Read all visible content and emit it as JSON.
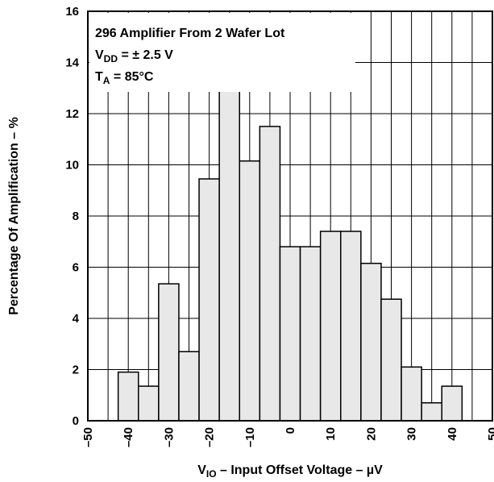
{
  "chart_data": {
    "type": "bar",
    "xlabel": {
      "main": "V",
      "sub": "IO",
      "rest": " – Input Offset Voltage – µV"
    },
    "ylabel": "Percentage Of Amplification – %",
    "xlim": [
      -50,
      50
    ],
    "ylim": [
      0,
      16
    ],
    "x_ticks": [
      "–50",
      "–40",
      "–30",
      "–20",
      "–10",
      "0",
      "10",
      "20",
      "30",
      "40",
      "50"
    ],
    "y_ticks": [
      "0",
      "2",
      "4",
      "6",
      "8",
      "10",
      "12",
      "14",
      "16"
    ],
    "grid": true,
    "bin_width": 5,
    "bins": [
      {
        "x0": -42.5,
        "value": 1.9
      },
      {
        "x0": -37.5,
        "value": 1.35
      },
      {
        "x0": -32.5,
        "value": 5.35
      },
      {
        "x0": -27.5,
        "value": 2.7
      },
      {
        "x0": -22.5,
        "value": 9.45
      },
      {
        "x0": -17.5,
        "value": 14.15
      },
      {
        "x0": -12.5,
        "value": 10.15
      },
      {
        "x0": -7.5,
        "value": 11.5
      },
      {
        "x0": -2.5,
        "value": 6.8
      },
      {
        "x0": 2.5,
        "value": 6.8
      },
      {
        "x0": 7.5,
        "value": 7.4
      },
      {
        "x0": 12.5,
        "value": 7.4
      },
      {
        "x0": 17.5,
        "value": 6.15
      },
      {
        "x0": 22.5,
        "value": 4.75
      },
      {
        "x0": 27.5,
        "value": 2.1
      },
      {
        "x0": 32.5,
        "value": 0.7
      },
      {
        "x0": 37.5,
        "value": 1.35
      }
    ],
    "annotations": {
      "line1": "296 Amplifier From 2 Wafer Lot",
      "line2": {
        "main": "V",
        "sub": "DD",
        "rest": " = ± 2.5 V"
      },
      "line3": {
        "main": "T",
        "sub": "A",
        "rest": " = 85°C"
      }
    },
    "colors": {
      "bar_fill": "#e8e8e8",
      "bar_stroke": "#000000",
      "grid": "#000000"
    }
  }
}
